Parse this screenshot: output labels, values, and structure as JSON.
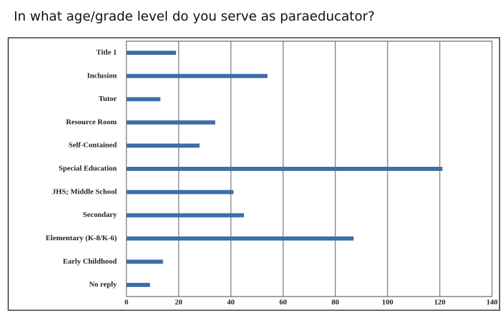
{
  "chart_data": {
    "type": "bar",
    "orientation": "horizontal",
    "title": "In what age/grade level do you serve as paraeducator?",
    "categories": [
      "Title 1",
      "Inclusion",
      "Tutor",
      "Resource Room",
      "Self-Contained",
      "Special Education",
      "JHS; Middle School",
      "Secondary",
      "Elementary (K-8/K-6)",
      "Early Childhood",
      "No reply"
    ],
    "values": [
      19,
      54,
      13,
      34,
      28,
      121,
      41,
      45,
      87,
      14,
      9
    ],
    "color": "#3e6ea6",
    "xlim": [
      0,
      140
    ],
    "xticks": [
      0,
      20,
      40,
      60,
      80,
      100,
      120,
      140
    ],
    "grid": true
  }
}
